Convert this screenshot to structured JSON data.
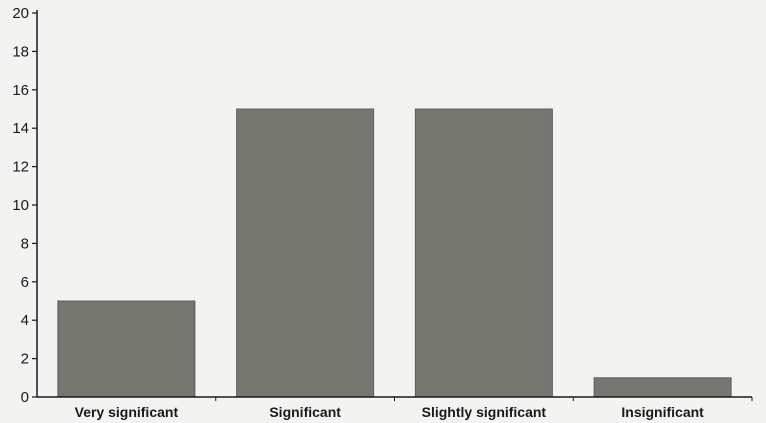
{
  "chart_data": {
    "type": "bar",
    "categories": [
      "Very significant",
      "Significant",
      "Slightly significant",
      "Insignificant"
    ],
    "values": [
      5,
      15,
      15,
      1
    ],
    "title": "",
    "xlabel": "",
    "ylabel": "",
    "ylim": [
      0,
      20
    ],
    "yticks": [
      "0",
      "2",
      "4",
      "6",
      "8",
      "10",
      "12",
      "14",
      "16",
      "18",
      "20"
    ],
    "grid": false,
    "legend": "none",
    "bar_color": "#777772",
    "axis_color": "#1a1a1a"
  }
}
